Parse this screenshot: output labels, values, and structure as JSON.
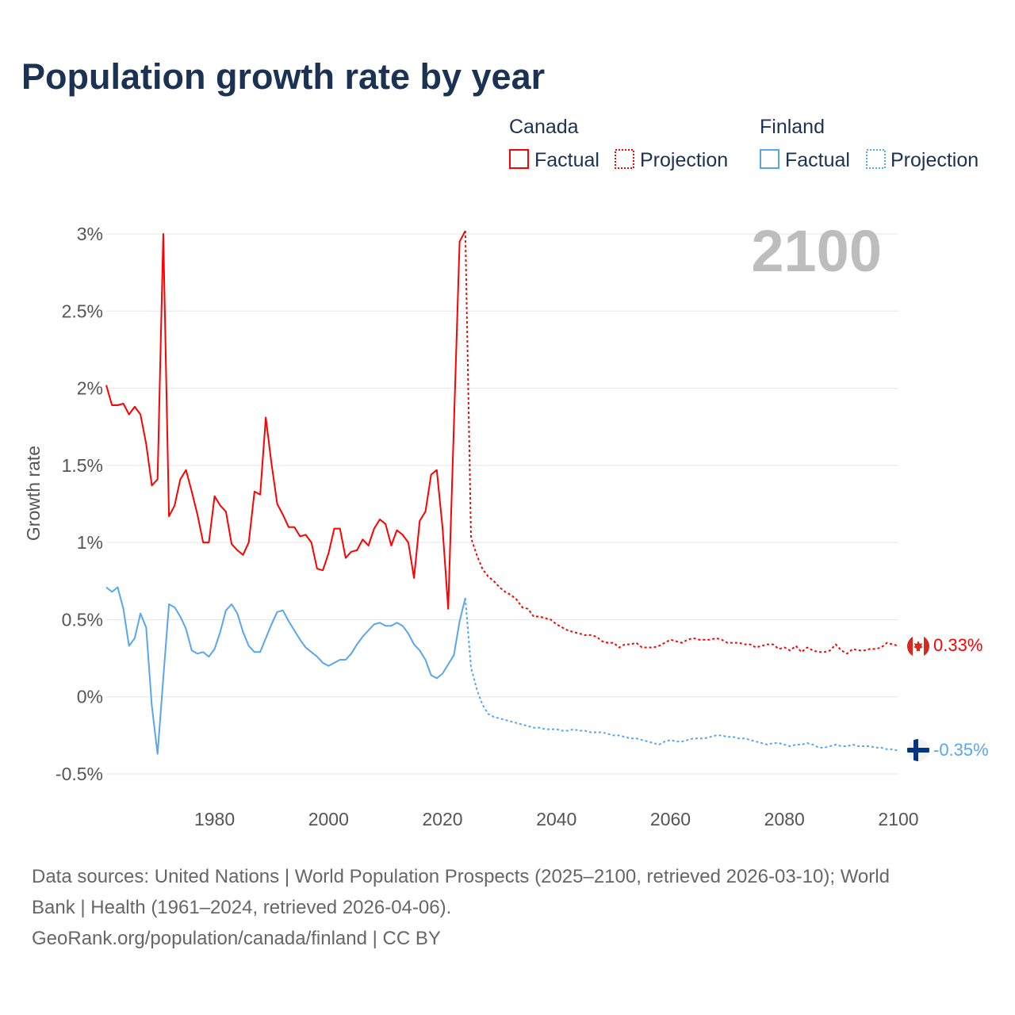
{
  "title": "Population growth rate by year",
  "legend": {
    "groups": [
      {
        "country": "Canada",
        "factual_label": "Factual",
        "projection_label": "Projection",
        "color": "#ff0000"
      },
      {
        "country": "Finland",
        "factual_label": "Factual",
        "projection_label": "Projection",
        "color": "#5aa5ef"
      }
    ]
  },
  "current_year_label": "2100",
  "end_labels": {
    "canada": "0.33%",
    "finland": "-0.35%"
  },
  "footer": {
    "line1": "Data sources: United Nations | World Population Prospects (2025–2100, retrieved 2026-03-10); World",
    "line2": "Bank | Health (1961–2024, retrieved 2026-04-06).",
    "line3": "GeoRank.org/population/canada/finland | CC BY"
  },
  "chart_data": {
    "type": "line",
    "title": "Population growth rate by year",
    "xlabel": "",
    "ylabel": "Growth rate",
    "xlim": [
      1961,
      2100
    ],
    "ylim": [
      -0.5,
      3
    ],
    "x_ticks": [
      1980,
      2000,
      2020,
      2040,
      2060,
      2080,
      2100
    ],
    "x_tick_labels": [
      "1980",
      "2000",
      "2020",
      "2040",
      "2060",
      "2080",
      "2100"
    ],
    "y_ticks": [
      -0.5,
      0,
      0.5,
      1,
      1.5,
      2,
      2.5,
      3
    ],
    "y_tick_labels": [
      "-0.5%",
      "0%",
      "0.5%",
      "1%",
      "1.5%",
      "2%",
      "2.5%",
      "3%"
    ],
    "grid": true,
    "legend_position": "top-right",
    "series": [
      {
        "name": "Canada Factual",
        "color": "#ff0000",
        "style": "solid",
        "x_start": 1961,
        "values": [
          2.02,
          1.89,
          1.89,
          1.9,
          1.83,
          1.88,
          1.83,
          1.64,
          1.37,
          1.41,
          3.0,
          1.17,
          1.24,
          1.41,
          1.47,
          1.33,
          1.18,
          1.0,
          1.0,
          1.3,
          1.24,
          1.2,
          0.99,
          0.95,
          0.92,
          1.0,
          1.33,
          1.31,
          1.81,
          1.51,
          1.25,
          1.18,
          1.1,
          1.1,
          1.04,
          1.05,
          1.0,
          0.83,
          0.82,
          0.93,
          1.09,
          1.09,
          0.9,
          0.94,
          0.95,
          1.02,
          0.98,
          1.09,
          1.15,
          1.12,
          0.98,
          1.08,
          1.05,
          1.0,
          0.77,
          1.14,
          1.2,
          1.44,
          1.47,
          1.1,
          0.57,
          1.76,
          2.95,
          3.02
        ]
      },
      {
        "name": "Canada Projection",
        "color": "#ff0000",
        "style": "dotted",
        "x_start": 2025,
        "values": [
          1.03,
          0.92,
          0.83,
          0.78,
          0.75,
          0.71,
          0.68,
          0.66,
          0.63,
          0.58,
          0.57,
          0.52,
          0.52,
          0.51,
          0.5,
          0.47,
          0.45,
          0.43,
          0.42,
          0.41,
          0.4,
          0.4,
          0.39,
          0.36,
          0.35,
          0.35,
          0.32,
          0.34,
          0.34,
          0.35,
          0.32,
          0.32,
          0.32,
          0.33,
          0.35,
          0.37,
          0.36,
          0.35,
          0.37,
          0.38,
          0.37,
          0.37,
          0.37,
          0.38,
          0.37,
          0.35,
          0.35,
          0.35,
          0.34,
          0.34,
          0.32,
          0.33,
          0.34,
          0.34,
          0.31,
          0.32,
          0.3,
          0.33,
          0.29,
          0.32,
          0.3,
          0.29,
          0.29,
          0.3,
          0.34,
          0.3,
          0.28,
          0.31,
          0.3,
          0.3,
          0.31,
          0.31,
          0.32,
          0.35,
          0.34,
          0.33
        ]
      },
      {
        "name": "Finland Factual",
        "color": "#5aa5ef",
        "style": "solid",
        "x_start": 1961,
        "values": [
          0.71,
          0.68,
          0.71,
          0.57,
          0.33,
          0.38,
          0.54,
          0.45,
          -0.06,
          -0.37,
          0.12,
          0.6,
          0.58,
          0.52,
          0.44,
          0.3,
          0.28,
          0.29,
          0.26,
          0.31,
          0.42,
          0.56,
          0.6,
          0.54,
          0.42,
          0.33,
          0.29,
          0.29,
          0.38,
          0.47,
          0.55,
          0.56,
          0.49,
          0.43,
          0.37,
          0.32,
          0.29,
          0.26,
          0.22,
          0.2,
          0.22,
          0.24,
          0.24,
          0.28,
          0.34,
          0.39,
          0.43,
          0.47,
          0.48,
          0.46,
          0.46,
          0.48,
          0.46,
          0.41,
          0.34,
          0.3,
          0.24,
          0.14,
          0.12,
          0.15,
          0.21,
          0.27,
          0.49,
          0.64
        ]
      },
      {
        "name": "Finland Projection",
        "color": "#5aa5ef",
        "style": "dotted",
        "x_start": 2025,
        "values": [
          0.19,
          0.05,
          -0.05,
          -0.11,
          -0.13,
          -0.14,
          -0.15,
          -0.16,
          -0.17,
          -0.18,
          -0.19,
          -0.2,
          -0.2,
          -0.21,
          -0.21,
          -0.21,
          -0.22,
          -0.22,
          -0.21,
          -0.22,
          -0.22,
          -0.23,
          -0.23,
          -0.23,
          -0.24,
          -0.25,
          -0.25,
          -0.26,
          -0.27,
          -0.27,
          -0.28,
          -0.29,
          -0.3,
          -0.31,
          -0.29,
          -0.28,
          -0.29,
          -0.29,
          -0.28,
          -0.27,
          -0.27,
          -0.27,
          -0.26,
          -0.25,
          -0.25,
          -0.26,
          -0.26,
          -0.27,
          -0.27,
          -0.28,
          -0.29,
          -0.3,
          -0.31,
          -0.3,
          -0.3,
          -0.31,
          -0.32,
          -0.31,
          -0.31,
          -0.3,
          -0.31,
          -0.33,
          -0.33,
          -0.32,
          -0.31,
          -0.32,
          -0.32,
          -0.31,
          -0.32,
          -0.32,
          -0.32,
          -0.33,
          -0.33,
          -0.34,
          -0.34,
          -0.35
        ]
      }
    ]
  }
}
